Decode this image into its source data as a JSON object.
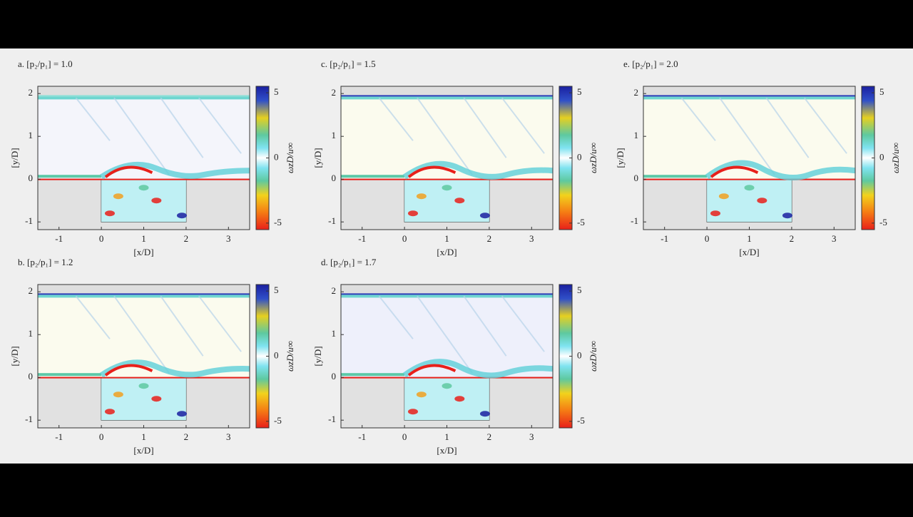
{
  "axes": {
    "xlabel": "[x/D]",
    "ylabel": "[y/D]",
    "clabel": "ωzD/u∞",
    "xlim": [
      -1.5,
      3.5
    ],
    "ylim": [
      -1.18,
      2.17
    ],
    "clim": [
      -5.5,
      5.5
    ],
    "xticks": [
      -1,
      0,
      1,
      2,
      3
    ],
    "yticks": [
      -1,
      0,
      1,
      2
    ],
    "cticks": [
      5,
      0,
      -5
    ]
  },
  "panels": [
    {
      "label": "a. [p₂/p₁] = 1.0"
    },
    {
      "label": "b. [p₂/p₁] = 1.2"
    },
    {
      "label": "c. [p₂/p₁] = 1.5"
    },
    {
      "label": "d. [p₂/p₁] = 1.7"
    },
    {
      "label": "e. [p₂/p₁] = 2.0"
    }
  ]
}
